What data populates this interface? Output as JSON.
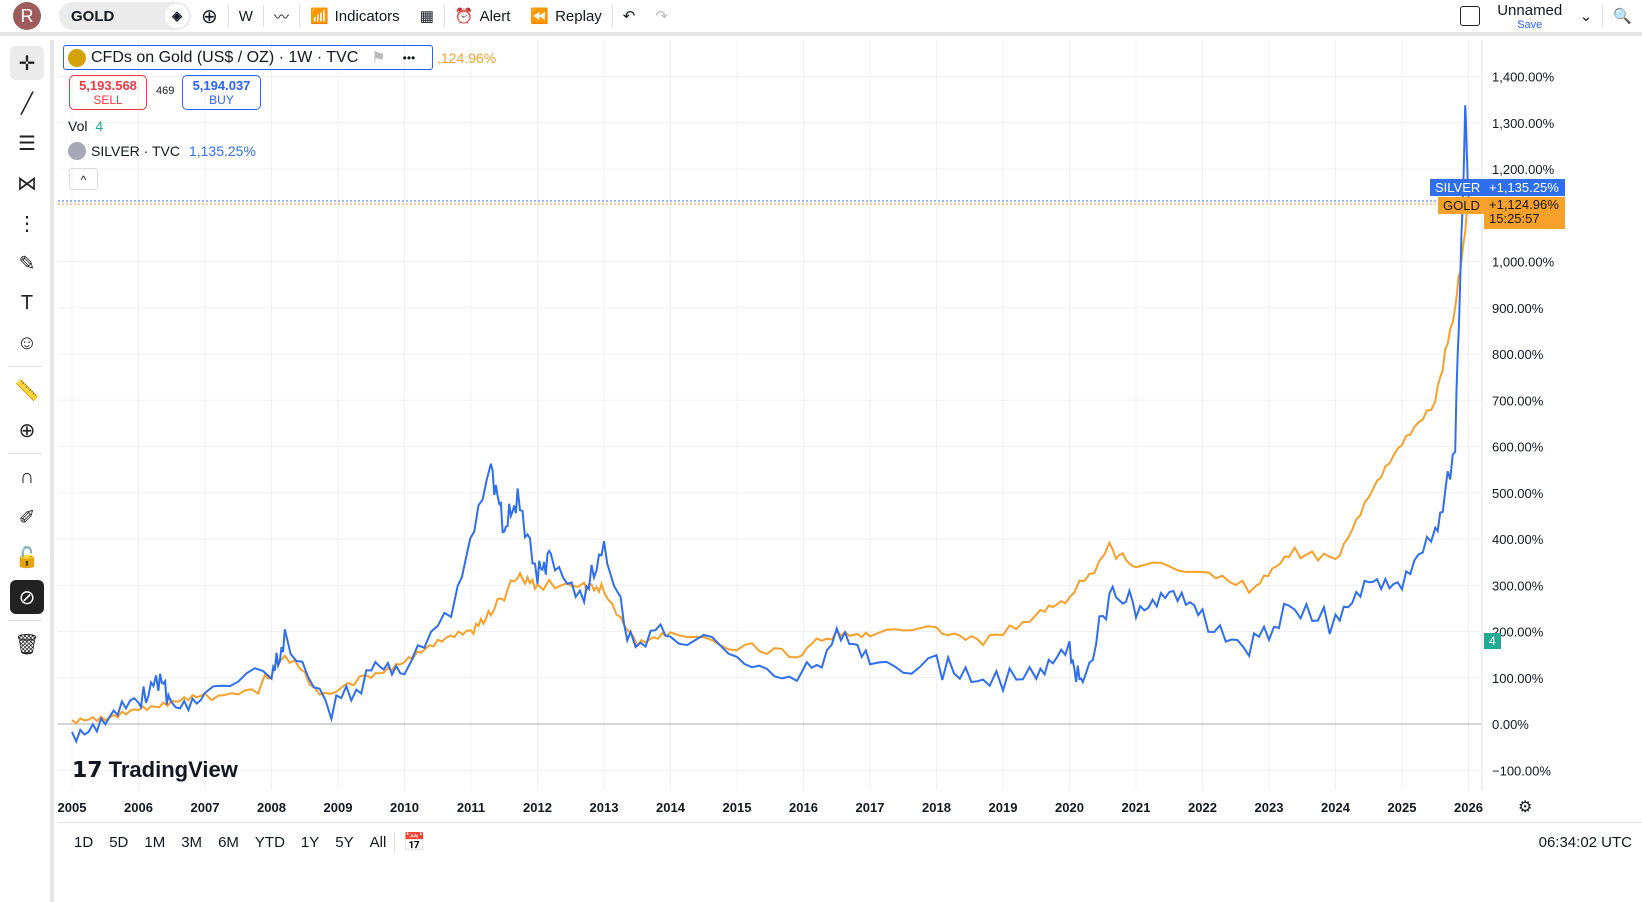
{
  "toolbar": {
    "avatar": "R",
    "symbol": "GOLD",
    "interval": "W",
    "indicators": "Indicators",
    "alert": "Alert",
    "replay": "Replay",
    "layout_name": "Unnamed",
    "save": "Save"
  },
  "legend": {
    "title": "CFDs on Gold (US$ / OZ) · 1W · TVC",
    "gold_pct": ",124.96%",
    "sell_price": "5,193.568",
    "sell": "SELL",
    "spread": "469",
    "buy_price": "5,194.037",
    "buy": "BUY",
    "vol_label": "Vol",
    "vol_value": "4",
    "compare": "SILVER · TVC",
    "compare_pct": "1,135.25%"
  },
  "price_tags": {
    "silver_label": "SILVER",
    "silver_value": "+1,135.25%",
    "gold_label": "GOLD",
    "gold_value": "+1,124.96%",
    "countdown": "15:25:57",
    "vol_tag": "4"
  },
  "logo": "TradingView",
  "bottom": {
    "ranges": [
      "1D",
      "5D",
      "1M",
      "3M",
      "6M",
      "YTD",
      "1Y",
      "5Y",
      "All"
    ],
    "clock": "06:34:02 UTC"
  },
  "chart_data": {
    "type": "line",
    "ylabel": "%",
    "ylim": [
      -150,
      1450
    ],
    "xlim": [
      2005,
      2026.2
    ],
    "yticks": [
      "1,400.00%",
      "1,300.00%",
      "1,200.00%",
      "1,000.00%",
      "900.00%",
      "800.00%",
      "700.00%",
      "600.00%",
      "500.00%",
      "400.00%",
      "300.00%",
      "200.00%",
      "100.00%",
      "0.00%",
      "−100.00%"
    ],
    "ytick_values": [
      1400,
      1300,
      1200,
      1000,
      900,
      800,
      700,
      600,
      500,
      400,
      300,
      200,
      100,
      0,
      -100
    ],
    "xticks": [
      "2005",
      "2006",
      "2007",
      "2008",
      "2009",
      "2010",
      "2011",
      "2012",
      "2013",
      "2014",
      "2015",
      "2016",
      "2017",
      "2018",
      "2019",
      "2020",
      "2021",
      "2022",
      "2023",
      "2024",
      "2025",
      "2026"
    ],
    "colors": {
      "gold": "#f7a02a",
      "silver": "#2f6fec"
    },
    "series": [
      {
        "name": "GOLD",
        "x": [
          2005,
          2005.5,
          2006,
          2006.5,
          2007,
          2007.8,
          2008.2,
          2008.8,
          2009.5,
          2010,
          2010.5,
          2011,
          2011.3,
          2011.7,
          2012,
          2012.7,
          2013,
          2013.5,
          2014,
          2015,
          2015.9,
          2016.5,
          2017,
          2018,
          2018.7,
          2019.5,
          2020,
          2020.6,
          2021,
          2022,
          2022.8,
          2023.3,
          2024,
          2024.5,
          2025,
          2025.5,
          2025.8,
          2026
        ],
        "y": [
          0,
          5,
          40,
          50,
          55,
          75,
          150,
          60,
          110,
          140,
          170,
          200,
          240,
          320,
          300,
          300,
          290,
          180,
          190,
          170,
          150,
          200,
          200,
          200,
          180,
          230,
          270,
          380,
          340,
          330,
          290,
          370,
          360,
          490,
          600,
          700,
          900,
          1125
        ]
      },
      {
        "name": "SILVER",
        "x": [
          2005,
          2005.5,
          2006,
          2006.3,
          2006.5,
          2007,
          2008,
          2008.2,
          2008.9,
          2009.5,
          2010,
          2010.8,
          2011.3,
          2011.5,
          2011.7,
          2012,
          2012.2,
          2012.7,
          2013,
          2013.4,
          2014,
          2015,
          2015.9,
          2016.5,
          2017,
          2018,
          2018.7,
          2019.5,
          2020,
          2020.2,
          2020.6,
          2021,
          2021.5,
          2022,
          2022.7,
          2023.3,
          2024,
          2024.5,
          2025,
          2025.5,
          2025.8,
          2025.95,
          2026
        ],
        "y": [
          -10,
          0,
          40,
          100,
          50,
          70,
          100,
          180,
          30,
          110,
          120,
          270,
          560,
          420,
          490,
          320,
          370,
          280,
          380,
          180,
          200,
          140,
          90,
          180,
          140,
          130,
          90,
          110,
          150,
          80,
          280,
          260,
          280,
          220,
          160,
          250,
          220,
          330,
          300,
          400,
          600,
          1320,
          1135
        ]
      }
    ]
  }
}
